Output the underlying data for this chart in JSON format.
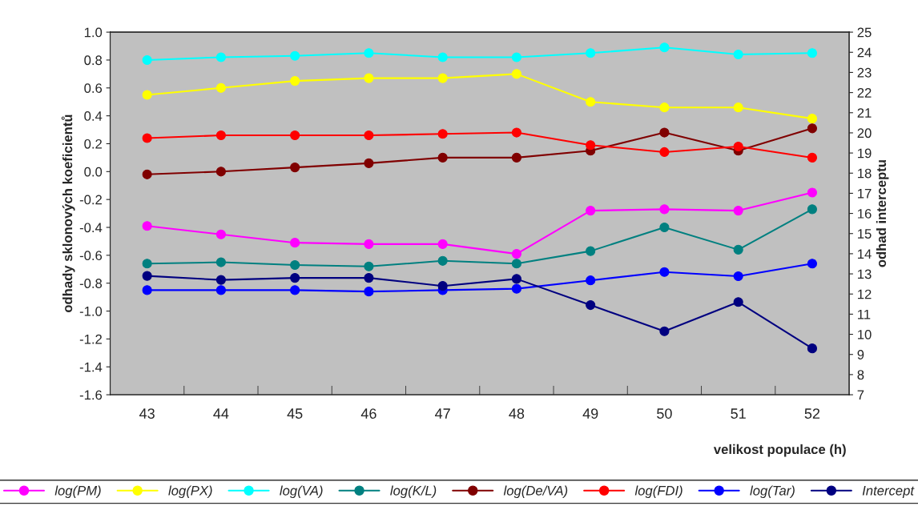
{
  "chart_data": {
    "type": "line",
    "xlabel": "velikost populace (h)",
    "ylabel": "odhady sklonových koeficientů",
    "y2label": "odhad interceptu",
    "categories": [
      "43",
      "44",
      "45",
      "46",
      "47",
      "48",
      "49",
      "50",
      "51",
      "52"
    ],
    "ylim": [
      -1.6,
      1.0
    ],
    "yticks": [
      {
        "value": -1.6,
        "label": "-1.6"
      },
      {
        "value": -1.4,
        "label": "-1.4"
      },
      {
        "value": -1.2,
        "label": "-1.2"
      },
      {
        "value": -1.0,
        "label": "-1.0"
      },
      {
        "value": -0.8,
        "label": "-0.8"
      },
      {
        "value": -0.6,
        "label": "-0.6"
      },
      {
        "value": -0.4,
        "label": "-0.4"
      },
      {
        "value": -0.2,
        "label": "-0.2"
      },
      {
        "value": 0.0,
        "label": "0.0"
      },
      {
        "value": 0.2,
        "label": "0.2"
      },
      {
        "value": 0.4,
        "label": "0.4"
      },
      {
        "value": 0.6,
        "label": "0.6"
      },
      {
        "value": 0.8,
        "label": "0.8"
      },
      {
        "value": 1.0,
        "label": "1.0"
      }
    ],
    "y2lim": [
      7,
      25
    ],
    "y2ticks": [
      7,
      8,
      9,
      10,
      11,
      12,
      13,
      14,
      15,
      16,
      17,
      18,
      19,
      20,
      21,
      22,
      23,
      24,
      25
    ],
    "marker": "circle",
    "line_style": "solid",
    "grid": false,
    "legend": "bottom",
    "series": [
      {
        "name": "log(PM)",
        "color": "#ff00ff",
        "values": [
          -0.39,
          -0.45,
          -0.51,
          -0.52,
          -0.52,
          -0.59,
          -0.28,
          -0.27,
          -0.28,
          -0.15
        ]
      },
      {
        "name": "log(PX)",
        "color": "#ffff00",
        "values": [
          0.55,
          0.6,
          0.65,
          0.67,
          0.67,
          0.7,
          0.5,
          0.46,
          0.46,
          0.38
        ]
      },
      {
        "name": "log(VA)",
        "color": "#00ffff",
        "values": [
          0.8,
          0.82,
          0.83,
          0.85,
          0.82,
          0.82,
          0.85,
          0.89,
          0.84,
          0.85
        ]
      },
      {
        "name": "log(K/L)",
        "color": "#008080",
        "values": [
          -0.66,
          -0.65,
          -0.67,
          -0.68,
          -0.64,
          -0.66,
          -0.57,
          -0.4,
          -0.56,
          -0.27
        ]
      },
      {
        "name": "log(De/VA)",
        "color": "#800000",
        "values": [
          -0.02,
          0.0,
          0.03,
          0.06,
          0.1,
          0.1,
          0.15,
          0.28,
          0.15,
          0.31
        ]
      },
      {
        "name": "log(FDI)",
        "color": "#ff0000",
        "values": [
          0.24,
          0.26,
          0.26,
          0.26,
          0.27,
          0.28,
          0.19,
          0.14,
          0.18,
          0.1
        ]
      },
      {
        "name": "log(Tar)",
        "color": "#0000ff",
        "values": [
          -0.85,
          -0.85,
          -0.85,
          -0.86,
          -0.85,
          -0.84,
          -0.78,
          -0.72,
          -0.75,
          -0.66
        ]
      },
      {
        "name": "Intercept",
        "color": "#000080",
        "axis": "y2",
        "values": [
          12.9,
          12.7,
          12.8,
          12.8,
          12.4,
          12.75,
          11.45,
          10.15,
          11.6,
          9.3
        ]
      }
    ]
  }
}
